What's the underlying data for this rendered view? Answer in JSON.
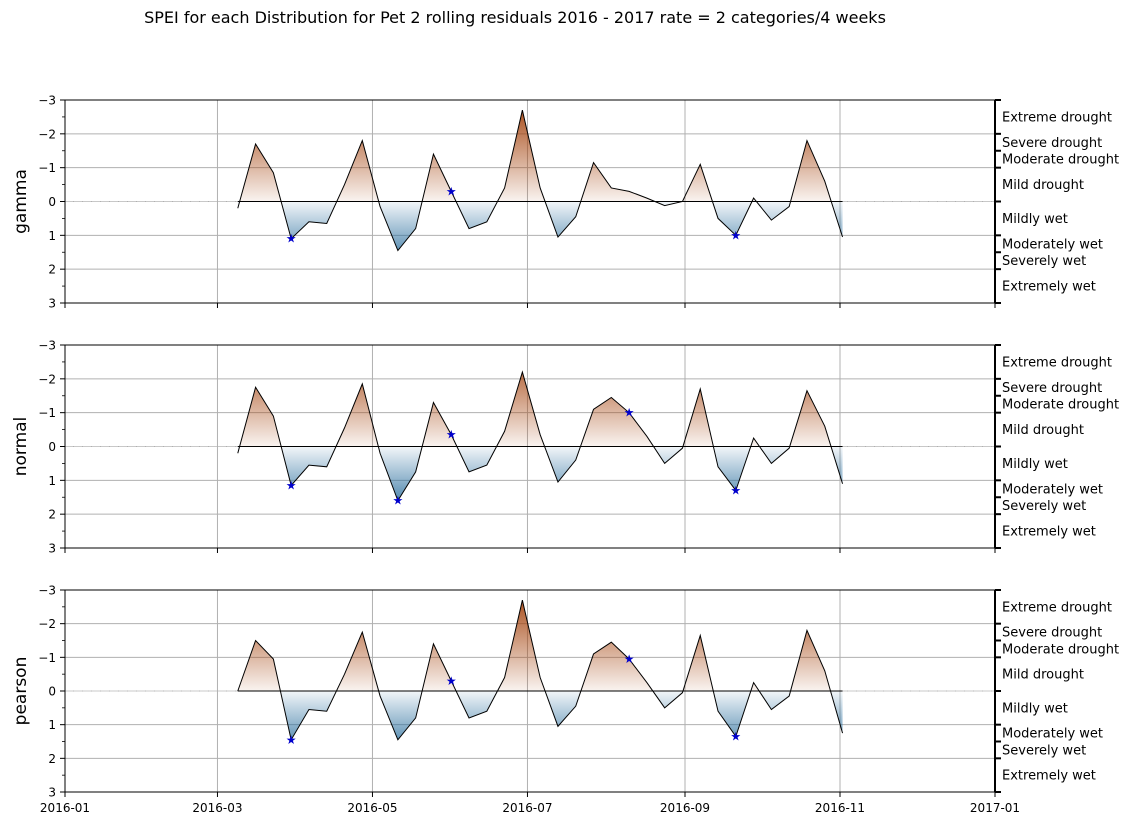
{
  "chart_data": {
    "type": "area",
    "title": "SPEI for each Distribution for Pet 2 rolling residuals 2016 - 2017 rate = 2 categories/4 weeks",
    "x_ticks": [
      "2016-01",
      "2016-03",
      "2016-05",
      "2016-07",
      "2016-09",
      "2016-11",
      "2017-01"
    ],
    "xlim": [
      "2016-01-01",
      "2017-01-01"
    ],
    "ylim": [
      3,
      -3
    ],
    "y_ticks": [
      -3,
      -2,
      -1,
      0,
      1,
      2,
      3
    ],
    "y_inverted": true,
    "grid": true,
    "categories": [
      {
        "label": "Extreme drought",
        "range": [
          -3,
          -2
        ]
      },
      {
        "label": "Severe drought",
        "range": [
          -2,
          -1.5
        ]
      },
      {
        "label": "Moderate drought",
        "range": [
          -1.5,
          -1
        ]
      },
      {
        "label": "Mild drought",
        "range": [
          -1,
          0
        ]
      },
      {
        "label": "Mildly wet",
        "range": [
          0,
          1
        ]
      },
      {
        "label": "Moderately wet",
        "range": [
          1,
          1.5
        ]
      },
      {
        "label": "Severely wet",
        "range": [
          1.5,
          2
        ]
      },
      {
        "label": "Extremely wet",
        "range": [
          2,
          3
        ]
      }
    ],
    "dates": [
      "2016-03-09",
      "2016-03-16",
      "2016-03-23",
      "2016-03-30",
      "2016-04-06",
      "2016-04-13",
      "2016-04-20",
      "2016-04-27",
      "2016-05-04",
      "2016-05-11",
      "2016-05-18",
      "2016-05-25",
      "2016-06-01",
      "2016-06-08",
      "2016-06-15",
      "2016-06-22",
      "2016-06-29",
      "2016-07-06",
      "2016-07-13",
      "2016-07-20",
      "2016-07-27",
      "2016-08-03",
      "2016-08-10",
      "2016-08-17",
      "2016-08-24",
      "2016-08-31",
      "2016-09-07",
      "2016-09-14",
      "2016-09-21",
      "2016-09-28",
      "2016-10-05",
      "2016-10-12",
      "2016-10-19",
      "2016-10-26",
      "2016-11-02"
    ],
    "series": [
      {
        "name": "gamma",
        "values": [
          0.2,
          -1.7,
          -0.85,
          1.1,
          0.6,
          0.65,
          -0.5,
          -1.8,
          0.15,
          1.45,
          0.8,
          -1.4,
          -0.3,
          0.8,
          0.6,
          -0.4,
          -2.7,
          -0.4,
          1.05,
          0.45,
          -1.15,
          -0.4,
          -0.3,
          -0.1,
          0.12,
          0.0,
          -1.1,
          0.5,
          1.0,
          -0.1,
          0.55,
          0.15,
          -1.8,
          -0.6,
          1.05
        ],
        "markers": [
          {
            "date": "2016-03-30",
            "value": 1.1
          },
          {
            "date": "2016-06-01",
            "value": -0.3
          },
          {
            "date": "2016-09-21",
            "value": 1.0
          }
        ]
      },
      {
        "name": "normal",
        "values": [
          0.2,
          -1.75,
          -0.9,
          1.15,
          0.55,
          0.6,
          -0.55,
          -1.85,
          0.2,
          1.6,
          0.75,
          -1.3,
          -0.35,
          0.75,
          0.55,
          -0.45,
          -2.2,
          -0.35,
          1.05,
          0.4,
          -1.1,
          -1.45,
          -1.0,
          -0.3,
          0.5,
          0.05,
          -1.7,
          0.6,
          1.3,
          -0.25,
          0.5,
          0.05,
          -1.65,
          -0.6,
          1.1
        ],
        "markers": [
          {
            "date": "2016-03-30",
            "value": 1.15
          },
          {
            "date": "2016-05-11",
            "value": 1.6
          },
          {
            "date": "2016-06-01",
            "value": -0.35
          },
          {
            "date": "2016-08-10",
            "value": -1.0
          },
          {
            "date": "2016-09-21",
            "value": 1.3
          }
        ]
      },
      {
        "name": "pearson",
        "values": [
          0.0,
          -1.5,
          -0.95,
          1.45,
          0.55,
          0.6,
          -0.5,
          -1.75,
          0.15,
          1.45,
          0.8,
          -1.4,
          -0.3,
          0.8,
          0.6,
          -0.4,
          -2.7,
          -0.4,
          1.05,
          0.45,
          -1.1,
          -1.45,
          -0.95,
          -0.25,
          0.5,
          0.05,
          -1.65,
          0.6,
          1.35,
          -0.25,
          0.55,
          0.15,
          -1.8,
          -0.6,
          1.25
        ],
        "markers": [
          {
            "date": "2016-03-30",
            "value": 1.45
          },
          {
            "date": "2016-06-01",
            "value": -0.3
          },
          {
            "date": "2016-08-10",
            "value": -0.95
          },
          {
            "date": "2016-09-21",
            "value": 1.35
          }
        ]
      }
    ],
    "colors": {
      "drought": "#a3410b",
      "wet": "#2a6f9e",
      "marker": "#0000cc",
      "grid": "#b0b0b0",
      "line": "#000000"
    }
  }
}
